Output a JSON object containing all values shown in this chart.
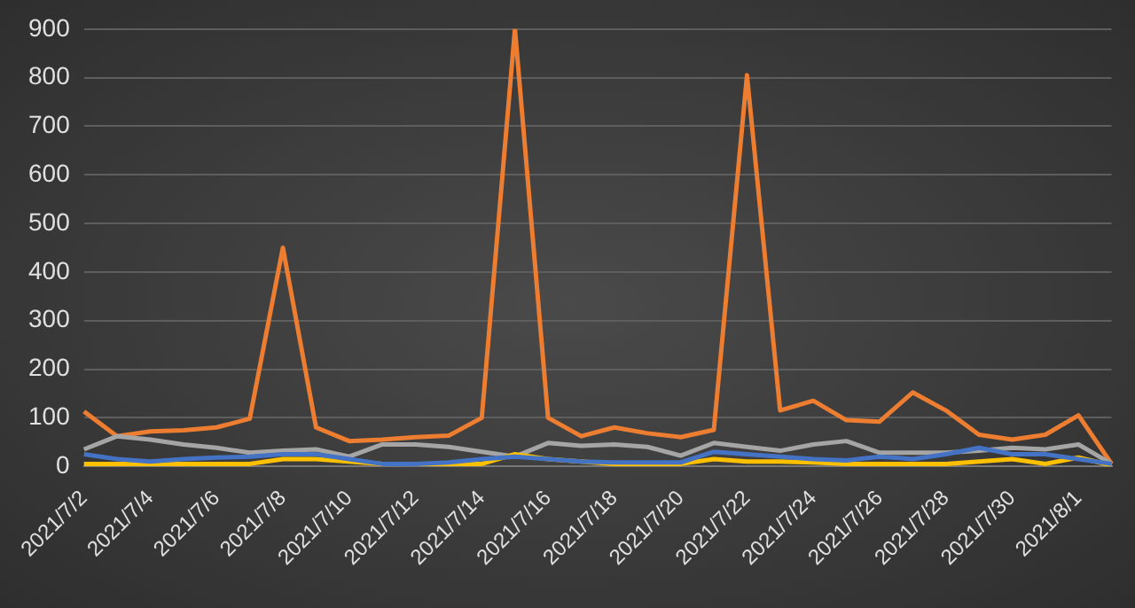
{
  "chart_data": {
    "type": "line",
    "categories": [
      "2021/7/2",
      null,
      "2021/7/4",
      null,
      "2021/7/6",
      null,
      "2021/7/8",
      null,
      "2021/7/10",
      null,
      "2021/7/12",
      null,
      "2021/7/14",
      null,
      "2021/7/16",
      null,
      "2021/7/18",
      null,
      "2021/7/20",
      null,
      "2021/7/22",
      null,
      "2021/7/24",
      null,
      "2021/7/26",
      null,
      "2021/7/28",
      null,
      "2021/7/30",
      null,
      "2021/8/1",
      null
    ],
    "series": [
      {
        "color": "#4472c4",
        "values": [
          25,
          15,
          10,
          15,
          18,
          20,
          25,
          25,
          15,
          5,
          5,
          8,
          15,
          20,
          15,
          10,
          8,
          8,
          8,
          30,
          25,
          20,
          15,
          12,
          20,
          15,
          25,
          38,
          25,
          25,
          15,
          5
        ]
      },
      {
        "color": "#ffc000",
        "values": [
          5,
          5,
          5,
          5,
          5,
          5,
          15,
          15,
          10,
          5,
          5,
          5,
          5,
          25,
          15,
          10,
          5,
          5,
          5,
          15,
          10,
          10,
          8,
          5,
          5,
          5,
          5,
          10,
          15,
          5,
          18,
          2
        ]
      },
      {
        "color": "#a5a5a5",
        "values": [
          35,
          62,
          55,
          45,
          38,
          28,
          32,
          35,
          20,
          45,
          45,
          40,
          30,
          20,
          48,
          42,
          45,
          40,
          22,
          48,
          40,
          32,
          45,
          52,
          28,
          28,
          28,
          32,
          38,
          35,
          45,
          5
        ]
      },
      {
        "color": "#ed7d31",
        "values": [
          113,
          62,
          72,
          74,
          80,
          98,
          450,
          80,
          52,
          55,
          60,
          63,
          100,
          900,
          100,
          62,
          80,
          68,
          60,
          75,
          805,
          115,
          135,
          95,
          92,
          152,
          115,
          65,
          55,
          65,
          105,
          5
        ]
      }
    ],
    "ylim": [
      0,
      900
    ],
    "yticks": [
      0,
      100,
      200,
      300,
      400,
      500,
      600,
      700,
      800,
      900
    ],
    "grid": "y",
    "marker": "none",
    "line_style": "solid"
  }
}
